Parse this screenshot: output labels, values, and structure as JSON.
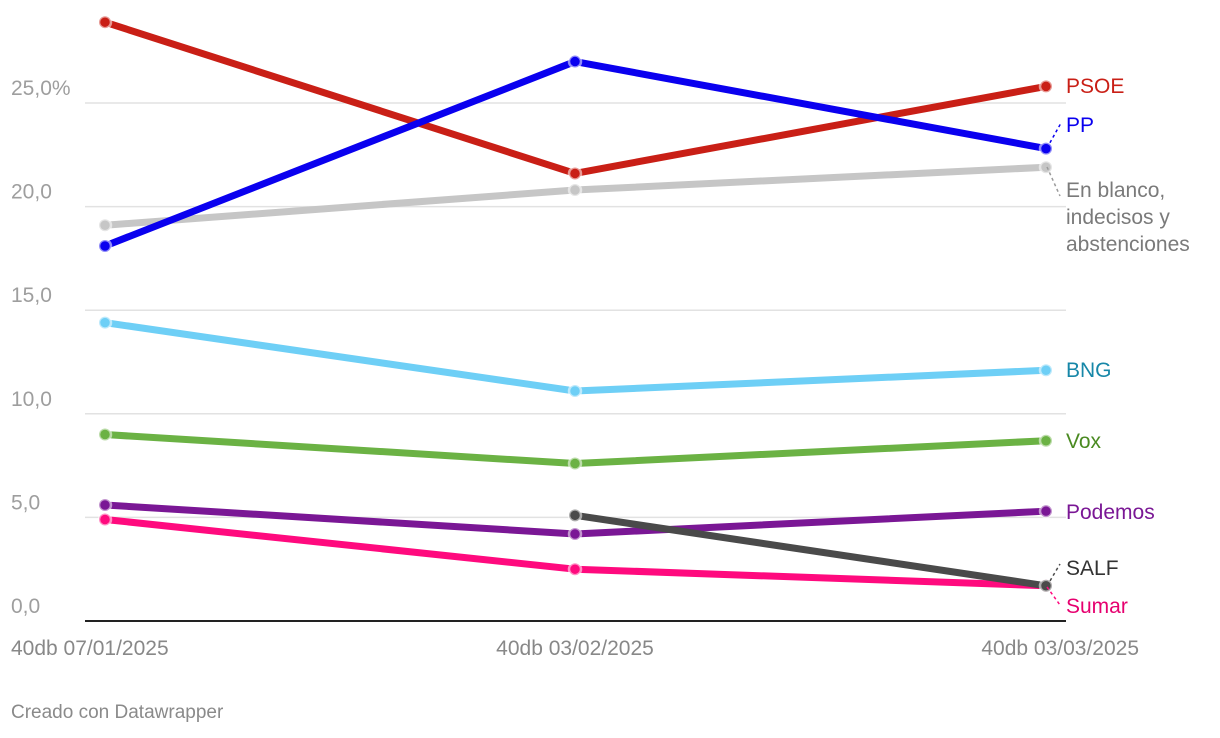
{
  "chart_data": {
    "type": "line",
    "x": [
      "40db 07/01/2025",
      "40db 03/02/2025",
      "40db 03/03/2025"
    ],
    "ylim": [
      0,
      28
    ],
    "yticks": [
      0,
      5,
      10,
      15,
      20,
      25
    ],
    "ytick_labels": [
      "0,0",
      "5,0",
      "10,0",
      "15,0",
      "20,0",
      "25,0%"
    ],
    "grid": true,
    "series": [
      {
        "name": "PSOE",
        "color": "#c91f16",
        "label_color": "#c91f16",
        "values": [
          28.9,
          21.6,
          25.8
        ]
      },
      {
        "name": "PP",
        "color": "#0a00ef",
        "label_color": "#0a00ef",
        "values": [
          18.1,
          27.0,
          22.8
        ]
      },
      {
        "name": "En blanco, indecisos y abstenciones",
        "color": "#c6c6c6",
        "label_color": "#7a7a7a",
        "values": [
          19.1,
          20.8,
          21.9
        ]
      },
      {
        "name": "BNG",
        "color": "#6ecff6",
        "label_color": "#1787a8",
        "values": [
          14.4,
          11.1,
          12.1
        ]
      },
      {
        "name": "Vox",
        "color": "#6bb244",
        "label_color": "#4a8a21",
        "values": [
          9.0,
          7.6,
          8.7
        ]
      },
      {
        "name": "Podemos",
        "color": "#7a1795",
        "label_color": "#7a1795",
        "values": [
          5.6,
          4.2,
          5.3
        ]
      },
      {
        "name": "SALF",
        "color": "#4a4a4a",
        "label_color": "#333333",
        "values": [
          null,
          5.1,
          1.7
        ]
      },
      {
        "name": "Sumar",
        "color": "#ff0a7e",
        "label_color": "#e6006f",
        "values": [
          4.9,
          2.5,
          1.7
        ]
      }
    ]
  },
  "credit": "Creado con Datawrapper"
}
